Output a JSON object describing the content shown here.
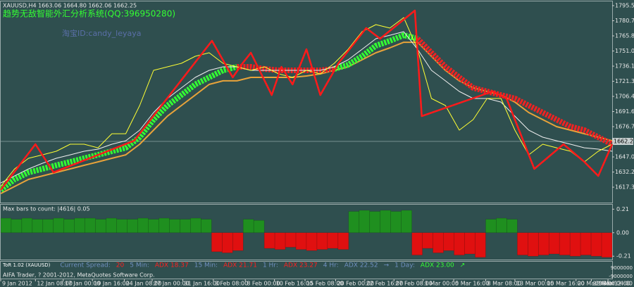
{
  "header": {
    "symbol_line": "XAUUSD,H4  1663.06 1664.80 1662.06 1662.25",
    "system_title": "趋势无敌智能外汇分析系统(QQ:396950280)",
    "watermark": "淘宝ID:candy_leyaya"
  },
  "chart_data": [
    {
      "type": "line",
      "ylim": [
        1602.2,
        1799
      ],
      "xlim": [
        0,
        44
      ],
      "yticks": [
        1795.55,
        {
          "value": 1780.7,
          "label": "1780.70"
        },
        1765.85,
        {
          "value": 1751,
          "label": "1751.00"
        },
        1736.15,
        {
          "value": 1721.3,
          "label": "1721.30"
        },
        1706.45,
        {
          "value": 1691.6,
          "label": "1691.60"
        },
        1676.75,
        1647.05,
        {
          "value": 1632.2,
          "label": "1632.20"
        },
        1617.35
      ],
      "current_price": 1662.25,
      "xticks": [
        {
          "value": 0,
          "label": "9 Jan 2012"
        },
        {
          "value": 2.5,
          "label": "12 Jan 08:00"
        },
        {
          "value": 4.5,
          "label": "17 Jan 00:00"
        },
        {
          "value": 6.6,
          "label": "19 Jan 16:00"
        },
        {
          "value": 8.9,
          "label": "24 Jan 08:00"
        },
        {
          "value": 10.9,
          "label": "27 Jan 00:00"
        },
        {
          "value": 13.1,
          "label": "31 Jan 16:00"
        },
        {
          "value": 15.3,
          "label": "3 Feb 08:00"
        },
        {
          "value": 17.6,
          "label": "8 Feb 00:00"
        },
        {
          "value": 19.7,
          "label": "10 Feb 16:00"
        },
        {
          "value": 21.9,
          "label": "15 Feb 08:00"
        },
        {
          "value": 24.1,
          "label": "20 Feb 00:00"
        },
        {
          "value": 26.2,
          "label": "22 Feb 16:00"
        },
        {
          "value": 28.3,
          "label": "27 Feb 08:00"
        },
        {
          "value": 30.4,
          "label": "1 Mar 00:00"
        },
        {
          "value": 32.6,
          "label": "5 Mar 16:00"
        },
        {
          "value": 34.9,
          "label": "8 Mar 08:00"
        },
        {
          "value": 37,
          "label": "13 Mar 00:00"
        },
        {
          "value": 39.2,
          "label": "15 Mar 16:00"
        },
        {
          "value": 41.4,
          "label": "20 Mar 08:00"
        },
        {
          "value": 42.5,
          "label": "22 Mar 12:00"
        },
        {
          "value": 43.7,
          "label": "23 Mar 04:00"
        }
      ],
      "series": [
        {
          "color": "#e8a33a",
          "width": 2,
          "values": [
            1611.1,
            1618.0,
            1625.0,
            1628.4,
            1631.8,
            1635.3,
            1638.8,
            1642.2,
            1645.7,
            1649.1,
            1659.5,
            1673.3,
            1687.1,
            1697.5,
            1707.8,
            1718.2,
            1721.7,
            1721.7,
            1725.1,
            1725.1,
            1725.1,
            1725.1,
            1726.5,
            1728.6,
            1732.0,
            1735.5,
            1742.4,
            1749.3,
            1754.1,
            1759.6,
            1759.6,
            1745.8,
            1732.0,
            1721.7,
            1714.8,
            1711.3,
            1707.8,
            1700.9,
            1690.6,
            1683.7,
            1676.8,
            1673.3,
            1669.8,
            1666.4,
            1662.9
          ]
        },
        {
          "color": "#33ff33",
          "width": 8,
          "dashed": true,
          "values": [
            1614.6,
            1625.0,
            1631.8,
            1635.3,
            1638.8,
            1642.2,
            1645.7,
            1649.1,
            1652.6,
            1656.0,
            1666.4,
            1683.7,
            1697.5,
            1707.8,
            1718.2,
            1725.1,
            1732.0,
            1735.5,
            null,
            null,
            null,
            null,
            null,
            null,
            1733.4,
            1737.5,
            1745.8,
            1756.2,
            1761.0,
            1766.5,
            1763.1,
            null,
            null,
            null,
            null,
            null,
            null,
            null,
            null,
            null,
            null,
            null,
            null,
            null,
            null
          ]
        },
        {
          "color": "#ee2222",
          "width": 8,
          "dashed": true,
          "values": [
            null,
            null,
            null,
            null,
            null,
            null,
            null,
            null,
            null,
            null,
            null,
            null,
            null,
            null,
            null,
            null,
            null,
            1735.5,
            1735.5,
            1733.4,
            1732.0,
            1732.0,
            1732.0,
            1732.0,
            1733.4,
            null,
            null,
            null,
            null,
            null,
            1763.1,
            1749.3,
            1735.5,
            1725.1,
            1714.8,
            1711.3,
            1707.8,
            1704.4,
            1697.5,
            1690.6,
            1683.7,
            1676.8,
            1673.3,
            1666.4,
            1659.5
          ]
        },
        {
          "color": "#f0f0f0",
          "width": 1,
          "values": [
            1621.5,
            1628.4,
            1635.3,
            1640.8,
            1645.7,
            1649.1,
            1652.6,
            1654.7,
            1659.5,
            1662.9,
            1673.3,
            1690.6,
            1704.4,
            1714.8,
            1725.1,
            1732.0,
            1735.5,
            1735.5,
            1732.0,
            1732.0,
            1732.0,
            1732.0,
            1732.0,
            1732.0,
            1735.5,
            1742.4,
            1752.7,
            1763.1,
            1766.5,
            1770.0,
            1752.7,
            1732.0,
            1721.7,
            1711.3,
            1704.4,
            1704.4,
            1700.9,
            1687.1,
            1673.3,
            1666.4,
            1662.9,
            1659.5,
            1656.0,
            1654.7,
            1652.6
          ]
        },
        {
          "color": "#ffff33",
          "width": 1,
          "values": [
            1618.0,
            1635.3,
            1645.7,
            1649.1,
            1652.6,
            1659.5,
            1659.5,
            1656.0,
            1669.8,
            1669.8,
            1697.5,
            1732.0,
            1735.5,
            1738.9,
            1745.8,
            1749.3,
            1738.9,
            1735.5,
            1732.0,
            1735.5,
            1728.6,
            1725.1,
            1732.0,
            1728.6,
            1738.9,
            1752.7,
            1770.0,
            1776.9,
            1773.5,
            1783.8,
            1752.7,
            1704.4,
            1697.5,
            1673.3,
            1683.7,
            1704.4,
            1704.4,
            1673.3,
            1649.1,
            1659.5,
            1656.0,
            1652.6,
            1642.2,
            1652.6,
            1659.5
          ]
        },
        {
          "color": "#ff1a1a",
          "width": 2.5,
          "x": [
            0,
            2.5,
            3.8,
            9.6,
            15.2,
            16.7,
            17.4,
            18,
            19.5,
            20.2,
            21,
            22,
            23,
            24.3,
            26.3,
            27.3,
            29.8,
            30.3,
            35.4,
            36.4,
            38.4,
            40.5,
            42,
            43,
            44
          ],
          "values": [
            1614.6,
            1659.5,
            1631.8,
            1662.9,
            1761.0,
            1725.1,
            1738.9,
            1749.3,
            1707.8,
            1735.5,
            1718.2,
            1752.7,
            1707.8,
            1738.9,
            1773.5,
            1763.1,
            1790.7,
            1687.1,
            1711.3,
            1704.4,
            1635.3,
            1659.5,
            1642.2,
            1628.4,
            1659.5
          ]
        }
      ]
    },
    {
      "type": "bar",
      "title": "Max bars to count: |4616|  0.05",
      "ylim": [
        -0.24,
        0.25
      ],
      "yticks": [
        0.21,
        {
          "value": 0,
          "label": "0.00"
        },
        -0.21
      ],
      "positive_color": "#1f8f1f",
      "negative_color": "#e01010",
      "values": [
        0.13,
        0.12,
        0.13,
        0.12,
        0.12,
        0.13,
        0.12,
        0.13,
        0.13,
        0.12,
        0.13,
        0.12,
        0.12,
        0.13,
        0.12,
        0.13,
        0.12,
        0.12,
        0.13,
        0.12,
        -0.17,
        -0.18,
        -0.16,
        0.12,
        0.11,
        -0.14,
        -0.15,
        -0.13,
        -0.15,
        -0.16,
        -0.15,
        -0.14,
        -0.15,
        0.19,
        0.2,
        0.19,
        0.2,
        0.19,
        0.2,
        -0.2,
        -0.14,
        -0.18,
        -0.16,
        -0.2,
        -0.19,
        -0.22,
        0.12,
        0.13,
        0.12,
        -0.2,
        -0.21,
        -0.2,
        -0.19,
        -0.2,
        -0.21,
        -0.2,
        -0.21,
        -0.22
      ]
    }
  ],
  "status_bar": {
    "items": [
      {
        "text": "ToR 1.02 (XAUUSD)",
        "color": "#ffffff"
      },
      {
        "text": "Current Spread:",
        "color": "#6f8fbf"
      },
      {
        "text": "20",
        "color": "#ff2020"
      },
      {
        "text": "5 Min:",
        "color": "#6f8fbf"
      },
      {
        "text": "ADX 18.37",
        "color": "#ff2020"
      },
      {
        "text": "15 Min:",
        "color": "#6f8fbf"
      },
      {
        "text": "ADX 21.71",
        "color": "#ff2020"
      },
      {
        "text": "1 Hr:",
        "color": "#6f8fbf"
      },
      {
        "text": "ADX 23.27",
        "color": "#ff2020"
      },
      {
        "text": "4 Hr:",
        "color": "#6f8fbf"
      },
      {
        "text": "ADX 22.52",
        "color": "#6f8fbf"
      },
      {
        "text": "→",
        "color": "#6f8fbf"
      },
      {
        "text": "1 Day:",
        "color": "#6f8fbf"
      },
      {
        "text": "ADX 23.00",
        "color": "#33ff33"
      },
      {
        "text": "↗",
        "color": "#33ff33"
      }
    ],
    "yticks": [
      9000000,
      -9000000
    ]
  },
  "footer": "AIFA Trader, ? 2001-2012, MetaQuotes Software Corp."
}
